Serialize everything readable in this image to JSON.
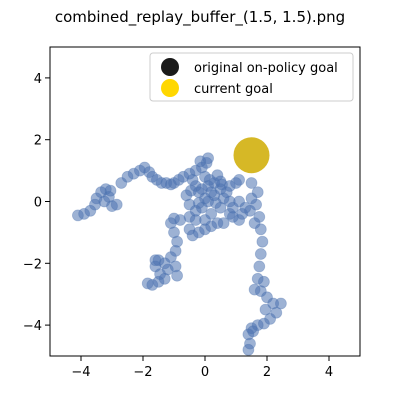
{
  "chart_data": {
    "type": "scatter",
    "title": "combined_replay_buffer_(1.5, 1.5).png",
    "xlabel": "",
    "ylabel": "",
    "xlim": [
      -5,
      5
    ],
    "ylim": [
      -5,
      5
    ],
    "xticks": [
      -4,
      -2,
      0,
      2,
      4
    ],
    "yticks": [
      -4,
      -2,
      0,
      2,
      4
    ],
    "xtick_labels": [
      "−4",
      "−2",
      "0",
      "2",
      "4"
    ],
    "ytick_labels": [
      "−4",
      "−2",
      "0",
      "2",
      "4"
    ],
    "grid": false,
    "legend_position": "top-right",
    "colors": {
      "trajectory": "#4c72b0",
      "original_goal": "#1a1a1a",
      "current_goal": "#ffd700",
      "current_goal_plot": "#d4b41a"
    },
    "series": [
      {
        "name": "original on-policy goal",
        "points": []
      },
      {
        "name": "current goal",
        "points": [
          [
            1.5,
            1.5
          ]
        ]
      }
    ],
    "trajectory_points": [
      [
        -4.1,
        -0.45
      ],
      [
        -3.9,
        -0.4
      ],
      [
        -3.7,
        -0.3
      ],
      [
        -3.55,
        -0.1
      ],
      [
        -3.5,
        0.1
      ],
      [
        -3.35,
        0.3
      ],
      [
        -3.2,
        0.4
      ],
      [
        -3.05,
        0.35
      ],
      [
        -3.1,
        0.15
      ],
      [
        -3.25,
        0.0
      ],
      [
        -3.0,
        -0.15
      ],
      [
        -2.85,
        -0.1
      ],
      [
        -2.7,
        0.6
      ],
      [
        -2.5,
        0.8
      ],
      [
        -2.3,
        0.9
      ],
      [
        -2.1,
        1.0
      ],
      [
        -1.95,
        1.1
      ],
      [
        -1.8,
        0.95
      ],
      [
        -1.7,
        0.8
      ],
      [
        -1.55,
        0.7
      ],
      [
        -1.4,
        0.6
      ],
      [
        -1.25,
        0.6
      ],
      [
        -1.1,
        0.55
      ],
      [
        -1.0,
        0.6
      ],
      [
        -0.85,
        0.7
      ],
      [
        -0.7,
        0.8
      ],
      [
        -0.5,
        0.9
      ],
      [
        -0.3,
        1.0
      ],
      [
        -0.1,
        1.1
      ],
      [
        0.05,
        1.25
      ],
      [
        0.1,
        1.4
      ],
      [
        -0.15,
        1.3
      ],
      [
        -0.3,
        0.5
      ],
      [
        -0.1,
        0.4
      ],
      [
        0.1,
        0.5
      ],
      [
        0.3,
        0.6
      ],
      [
        0.5,
        0.4
      ],
      [
        0.3,
        0.2
      ],
      [
        0.1,
        0.0
      ],
      [
        -0.1,
        -0.2
      ],
      [
        -0.3,
        -0.3
      ],
      [
        -0.5,
        -0.1
      ],
      [
        -0.6,
        0.2
      ],
      [
        -0.4,
        0.7
      ],
      [
        0.0,
        0.8
      ],
      [
        0.4,
        0.85
      ],
      [
        0.6,
        0.1
      ],
      [
        0.5,
        -0.2
      ],
      [
        0.2,
        -0.4
      ],
      [
        0.0,
        -0.6
      ],
      [
        -0.2,
        0.3
      ],
      [
        0.2,
        0.3
      ],
      [
        0.0,
        0.1
      ],
      [
        -0.2,
        -0.05
      ],
      [
        0.35,
        -0.05
      ],
      [
        0.15,
        0.7
      ],
      [
        -0.45,
        0.35
      ],
      [
        0.55,
        0.55
      ],
      [
        0.7,
        0.3
      ],
      [
        0.8,
        0.0
      ],
      [
        0.9,
        -0.2
      ],
      [
        0.5,
        0.65
      ],
      [
        0.8,
        0.5
      ],
      [
        1.0,
        0.6
      ],
      [
        1.1,
        0.7
      ],
      [
        -0.5,
        -0.5
      ],
      [
        -0.8,
        -0.6
      ],
      [
        -1.0,
        -0.55
      ],
      [
        -1.1,
        -0.7
      ],
      [
        -1.0,
        -1.0
      ],
      [
        -0.9,
        -1.3
      ],
      [
        -0.95,
        -1.6
      ],
      [
        -1.1,
        -1.8
      ],
      [
        -1.3,
        -2.0
      ],
      [
        -1.5,
        -1.9
      ],
      [
        -1.6,
        -2.1
      ],
      [
        -1.45,
        -2.35
      ],
      [
        -1.3,
        -2.5
      ],
      [
        -1.5,
        -2.6
      ],
      [
        -1.7,
        -2.7
      ],
      [
        -1.85,
        -2.65
      ],
      [
        -1.6,
        -1.9
      ],
      [
        -1.2,
        -2.2
      ],
      [
        -0.95,
        -2.1
      ],
      [
        -0.9,
        -2.4
      ],
      [
        -0.3,
        -0.6
      ],
      [
        -0.5,
        -0.9
      ],
      [
        -0.4,
        -1.1
      ],
      [
        -0.2,
        -1.0
      ],
      [
        0.0,
        -0.9
      ],
      [
        0.2,
        -0.8
      ],
      [
        0.9,
        -0.5
      ],
      [
        1.1,
        -0.6
      ],
      [
        1.2,
        -0.4
      ],
      [
        1.1,
        0.0
      ],
      [
        0.8,
        -0.4
      ],
      [
        0.6,
        -0.7
      ],
      [
        0.4,
        -0.7
      ],
      [
        1.5,
        0.6
      ],
      [
        1.7,
        0.3
      ],
      [
        1.65,
        -0.1
      ],
      [
        1.75,
        -0.5
      ],
      [
        1.8,
        -0.9
      ],
      [
        1.85,
        -1.3
      ],
      [
        1.8,
        -1.7
      ],
      [
        1.75,
        -2.1
      ],
      [
        1.7,
        -2.5
      ],
      [
        1.8,
        -2.9
      ],
      [
        2.0,
        -3.1
      ],
      [
        2.2,
        -3.3
      ],
      [
        2.45,
        -3.3
      ],
      [
        2.3,
        -3.6
      ],
      [
        2.1,
        -3.8
      ],
      [
        1.9,
        -3.95
      ],
      [
        1.7,
        -4.0
      ],
      [
        1.5,
        -4.1
      ],
      [
        1.4,
        -4.3
      ],
      [
        1.45,
        -4.6
      ],
      [
        1.4,
        -4.8
      ],
      [
        1.55,
        -4.2
      ],
      [
        1.6,
        -2.85
      ],
      [
        1.9,
        -2.6
      ],
      [
        1.95,
        -3.5
      ],
      [
        1.3,
        -0.2
      ],
      [
        1.45,
        -0.3
      ],
      [
        1.5,
        0.1
      ],
      [
        1.6,
        -0.7
      ]
    ]
  }
}
